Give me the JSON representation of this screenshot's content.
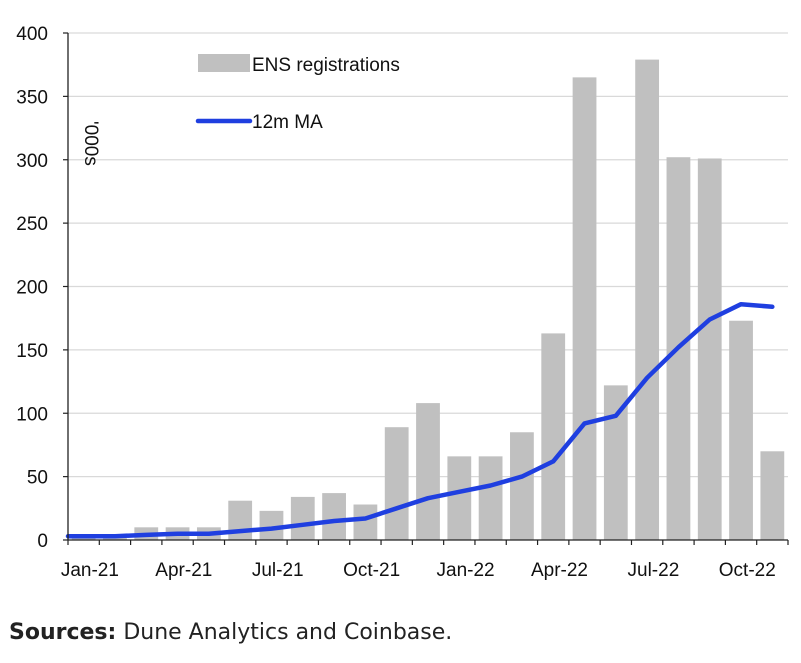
{
  "chart_data": {
    "type": "bar",
    "categories": [
      "Jan-21",
      "Feb-21",
      "Mar-21",
      "Apr-21",
      "May-21",
      "Jun-21",
      "Jul-21",
      "Aug-21",
      "Sep-21",
      "Oct-21",
      "Nov-21",
      "Dec-21",
      "Jan-22",
      "Feb-22",
      "Mar-22",
      "Apr-22",
      "May-22",
      "Jun-22",
      "Jul-22",
      "Aug-22",
      "Sep-22",
      "Oct-22",
      "Nov-22"
    ],
    "x_tick_labels": [
      "Jan-21",
      "Apr-21",
      "Jul-21",
      "Oct-21",
      "Jan-22",
      "Apr-22",
      "Jul-22",
      "Oct-22"
    ],
    "series": [
      {
        "name": "ENS registrations",
        "kind": "bar",
        "color": "#c0c0c0",
        "values": [
          3,
          3,
          10,
          10,
          10,
          31,
          23,
          34,
          37,
          28,
          89,
          108,
          66,
          66,
          85,
          163,
          365,
          122,
          379,
          302,
          301,
          173,
          70
        ]
      },
      {
        "name": "12m MA",
        "kind": "line",
        "color": "#1f3fe0",
        "values": [
          3,
          3,
          4,
          5,
          5,
          7,
          9,
          12,
          15,
          17,
          25,
          33,
          38,
          43,
          50,
          62,
          92,
          98,
          128,
          152,
          174,
          186,
          184
        ]
      }
    ],
    "unit_label": "'000s",
    "ylim": [
      0,
      400
    ],
    "y_ticks": [
      0,
      50,
      100,
      150,
      200,
      250,
      300,
      350,
      400
    ],
    "grid": "horizontal",
    "legend_position": "top-left"
  },
  "source": {
    "label": "Sources:",
    "text": " Dune Analytics and Coinbase."
  }
}
